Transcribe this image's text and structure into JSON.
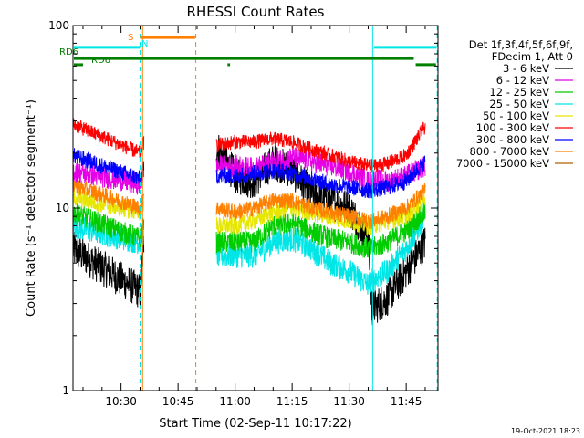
{
  "chart_data": {
    "type": "line",
    "title": "RHESSI Count Rates",
    "xlabel": "Start Time (02-Sep-11 10:17:22)",
    "ylabel": "Count Rate (s⁻¹ detector segment⁻¹)",
    "yscale": "log",
    "ylim": [
      1,
      100
    ],
    "xlim_minutes_from_start": [
      0,
      40.6
    ],
    "x_tick_labels": [
      "10:30",
      "10:45",
      "11:00",
      "11:15",
      "11:30",
      "11:45"
    ],
    "y_tick_labels": [
      "1",
      "10",
      "100"
    ],
    "legend_header": [
      "Det 1f,3f,4f,5f,6f,9f,",
      "FDecim 1, Att 0"
    ],
    "legend_placement": "right",
    "grid": false,
    "x_times": [
      "10:17",
      "10:35",
      "10:36",
      "10:50",
      "10:55",
      "11:00",
      "11:05",
      "11:10",
      "11:15",
      "11:20",
      "11:25",
      "11:30",
      "11:35",
      "11:36",
      "11:40",
      "11:45",
      "11:50"
    ],
    "series": [
      {
        "name": "3 - 6 keV",
        "color": "#000000",
        "values": [
          6.0,
          3.5,
          6.5,
          null,
          22,
          15,
          14,
          18,
          16,
          12,
          11,
          10,
          7,
          2.8,
          3.2,
          4.5,
          6.5
        ]
      },
      {
        "name": "6 - 12 keV",
        "color": "#e600e6",
        "values": [
          16.0,
          13.5,
          16.0,
          null,
          17,
          17,
          16.5,
          18,
          19,
          18,
          17,
          16,
          14,
          14.5,
          14,
          15,
          17
        ]
      },
      {
        "name": "12 - 25 keV",
        "color": "#00cc00",
        "values": [
          9.5,
          6.8,
          8.0,
          null,
          6.5,
          6.5,
          6.5,
          8.0,
          8.3,
          7.5,
          6.8,
          6.5,
          6.0,
          6.0,
          6.5,
          7.5,
          9.5
        ]
      },
      {
        "name": "25 - 50 keV",
        "color": "#00e6e6",
        "values": [
          8.0,
          6.5,
          7.5,
          null,
          5.5,
          5.5,
          5.5,
          6.5,
          6.8,
          6.0,
          5.0,
          4.5,
          3.8,
          4.0,
          4.5,
          6.0,
          9.0
        ]
      },
      {
        "name": "50 - 100 keV",
        "color": "#e6e600",
        "values": [
          11.5,
          9.5,
          11.0,
          null,
          8.0,
          8.0,
          8.5,
          9.5,
          10.0,
          9.5,
          9.0,
          8.5,
          8.0,
          8.0,
          8.5,
          9.0,
          11.5
        ]
      },
      {
        "name": "100 - 300 keV",
        "color": "#ff0000",
        "values": [
          29,
          20,
          23,
          null,
          22,
          23,
          23,
          24,
          23,
          21,
          19.5,
          18,
          17,
          17,
          17.5,
          19.5,
          28
        ]
      },
      {
        "name": "300 - 800 keV",
        "color": "#0000ff",
        "values": [
          19.5,
          14.5,
          16.5,
          null,
          15,
          15,
          15.5,
          16,
          15.5,
          14.5,
          13.5,
          13,
          12.5,
          12.5,
          13,
          14,
          18
        ]
      },
      {
        "name": "800 - 7000 keV",
        "color": "#ff8000",
        "values": [
          13.5,
          10.0,
          12.0,
          null,
          10.0,
          9.5,
          10.0,
          11.0,
          11.0,
          10.0,
          9.5,
          9.0,
          8.5,
          8.5,
          9.0,
          10.0,
          12.5
        ]
      },
      {
        "name": "7000 - 15000 keV",
        "color": "#b06000",
        "values": [
          null
        ]
      }
    ],
    "status_bars": [
      {
        "label": "S",
        "color": "#ff8000",
        "x_start": "10:35:00",
        "x_end": "10:49:30",
        "y": 86
      },
      {
        "label": "N",
        "color": "#00e6e6",
        "x_start": "10:17:22",
        "x_end": "10:35:00",
        "y": 76
      },
      {
        "label": "N",
        "color": "#00e6e6",
        "x_start": "11:36:30",
        "x_end": "11:53:00",
        "y": 76
      },
      {
        "label": "RD6",
        "color": "#008000",
        "x_start": "10:17:22",
        "x_end": "11:47:00",
        "y": 66
      },
      {
        "label": "RD6",
        "color": "#008000",
        "x_start": "10:17:22",
        "x_end": "10:20:00",
        "y": 61
      },
      {
        "label": "",
        "color": "#008000",
        "x_start": "10:58:00",
        "x_end": "10:58:40",
        "y": 61
      },
      {
        "label": "",
        "color": "#008000",
        "x_start": "11:47:30",
        "x_end": "11:52:50",
        "y": 61
      }
    ],
    "vertical_markers": [
      {
        "time": "10:35:00",
        "color": "#00e6e6",
        "style": "dashed"
      },
      {
        "time": "10:35:40",
        "color": "#ff8000",
        "style": "solid"
      },
      {
        "time": "10:49:40",
        "color": "#ff8000",
        "style": "dashed"
      },
      {
        "time": "11:36:10",
        "color": "#00e6e6",
        "style": "solid"
      },
      {
        "time": "11:53:10",
        "color": "#00e6e6",
        "style": "dashed"
      }
    ]
  },
  "footer_timestamp": "19-Oct-2021 18:23",
  "labels": {
    "s_label": "S",
    "n_label": "N",
    "rd6_label_a": "RD6",
    "rd6_label_b": "RD6"
  }
}
